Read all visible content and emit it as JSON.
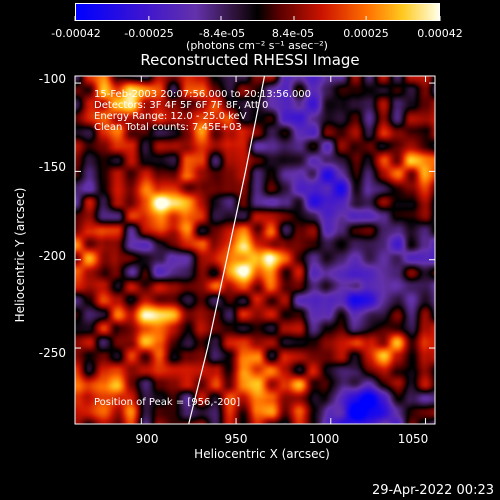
{
  "chart_data": {
    "type": "heatmap",
    "title": "Reconstructed RHESSI Image",
    "xlabel": "Heliocentric X (arcsec)",
    "ylabel": "Heliocentric Y (arcsec)",
    "xlim": [
      865,
      1055
    ],
    "ylim": [
      -293,
      -96
    ],
    "xticks": [
      900,
      950,
      1000,
      1050
    ],
    "yticks": [
      -100,
      -150,
      -200,
      -250
    ],
    "colorbar": {
      "range": [
        -0.00042,
        0.00042
      ],
      "tick_labels": [
        "-0.00042",
        "-0.00025",
        "-8.4e-05",
        "8.4e-05",
        "0.00025",
        "0.00042"
      ],
      "tick_values": [
        -0.00042,
        -0.00025,
        -8.4e-05,
        8.4e-05,
        0.00025,
        0.00042
      ],
      "unit_label": "(photons cm⁻² s⁻¹ asec⁻²)"
    },
    "info_lines": [
      "15-Feb-2003 20:07:56.000 to 20:13:56.000",
      "Detectors: 3F 4F 5F 6F 7F 8F, Att 0",
      "Energy Range: 12.0 - 25.0 keV",
      "Clean      Total counts: 7.45E+03"
    ],
    "peak_label": "Position of Peak = [956,-200]",
    "peak": [
      956,
      -200
    ],
    "limb_curve": [
      [
        925,
        -293
      ],
      [
        935,
        -250
      ],
      [
        945,
        -200
      ],
      [
        955,
        -150
      ],
      [
        965,
        -96
      ]
    ],
    "hot_spots": [
      {
        "x": 956,
        "y": -200,
        "value": 0.00042
      },
      {
        "x": 915,
        "y": -170,
        "value": 0.00036
      },
      {
        "x": 888,
        "y": -110,
        "value": 0.00028
      },
      {
        "x": 935,
        "y": -120,
        "value": 0.00025
      },
      {
        "x": 905,
        "y": -235,
        "value": 0.0003
      },
      {
        "x": 880,
        "y": -280,
        "value": 0.00028
      },
      {
        "x": 960,
        "y": -270,
        "value": 0.00028
      },
      {
        "x": 1040,
        "y": -145,
        "value": 0.00024
      },
      {
        "x": 1030,
        "y": -250,
        "value": 0.00022
      },
      {
        "x": 990,
        "y": -280,
        "value": 0.00018
      },
      {
        "x": 870,
        "y": -200,
        "value": 0.00022
      }
    ],
    "cold_spots": [
      {
        "x": 1000,
        "y": -160,
        "value": -0.00025
      },
      {
        "x": 1010,
        "y": -220,
        "value": -0.00025
      },
      {
        "x": 1015,
        "y": -285,
        "value": -0.00042
      },
      {
        "x": 985,
        "y": -110,
        "value": -0.00015
      },
      {
        "x": 905,
        "y": -200,
        "value": -0.00018
      },
      {
        "x": 1045,
        "y": -190,
        "value": -0.00015
      }
    ]
  },
  "timestamp": "29-Apr-2022 00:23"
}
